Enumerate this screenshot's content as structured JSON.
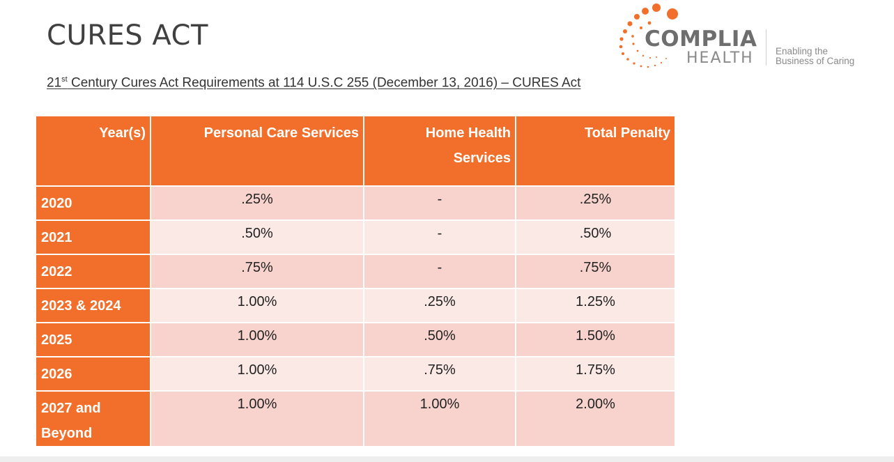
{
  "slide": {
    "title": "CURES ACT",
    "subtitle_prefix": "21",
    "subtitle_sup": "st",
    "subtitle_rest": " Century Cures Act Requirements at 114 U.S.C 255 (December 13, 2016) – CURES Act"
  },
  "logo": {
    "name": "COMPLIA",
    "sub": "HEALTH",
    "tagline_line1": "Enabling the",
    "tagline_line2": "Business of Caring",
    "accent_color": "#f26f2b"
  },
  "table": {
    "headers": [
      "Year(s)",
      "Personal Care Services",
      "Home Health Services",
      "Total Penalty"
    ],
    "rows": [
      {
        "year": "2020",
        "personal_care": ".25%",
        "home_health": "-",
        "total": ".25%"
      },
      {
        "year": "2021",
        "personal_care": ".50%",
        "home_health": "-",
        "total": ".50%"
      },
      {
        "year": "2022",
        "personal_care": ".75%",
        "home_health": "-",
        "total": ".75%"
      },
      {
        "year": "2023 & 2024",
        "personal_care": "1.00%",
        "home_health": ".25%",
        "total": "1.25%"
      },
      {
        "year": "2025",
        "personal_care": "1.00%",
        "home_health": ".50%",
        "total": "1.50%"
      },
      {
        "year": "2026",
        "personal_care": "1.00%",
        "home_health": ".75%",
        "total": "1.75%"
      },
      {
        "year": "2027 and Beyond",
        "personal_care": "1.00%",
        "home_health": "1.00%",
        "total": "2.00%"
      }
    ],
    "header_color": "#f26f2b",
    "row_color_odd": "#f8d3cd",
    "row_color_even": "#fbe9e6"
  }
}
